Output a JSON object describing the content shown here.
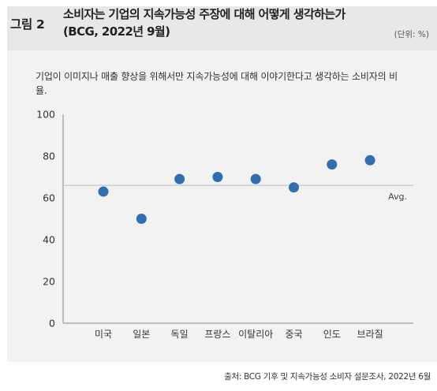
{
  "header": {
    "figure_label": "그림 2",
    "title_line1": "소비자는 기업의 지속가능성 주장에 대해 어떻게 생각하는가",
    "title_line2": "(BCG, 2022년 9월)",
    "unit": "(단위: %)"
  },
  "subtitle": "기업이 이미지나 매출 향상을 위해서만 지속가능성에 대해 이야기한다고 생각하는 소비자의 비율.",
  "source": "출처: BCG 기후 및 지속가능성 소비자 설문조사, 2022년 6월",
  "colors": {
    "marker": "#2f6fb0",
    "average_line": "#bdbdbd",
    "header_bg": "#e8e8e8",
    "body_bg": "#f2f2f2"
  },
  "chart_data": {
    "type": "scatter",
    "title": "",
    "xlabel": "",
    "ylabel": "",
    "categories": [
      "미국",
      "일본",
      "독일",
      "프랑스",
      "이탈리아",
      "중국",
      "인도",
      "브라질"
    ],
    "values": [
      63,
      50,
      69,
      70,
      69,
      65,
      76,
      78
    ],
    "ylim": [
      0,
      100
    ],
    "yticks": [
      0,
      20,
      40,
      60,
      80,
      100
    ],
    "grid": false,
    "reference_line": {
      "label": "Avg.",
      "value": 66
    }
  }
}
